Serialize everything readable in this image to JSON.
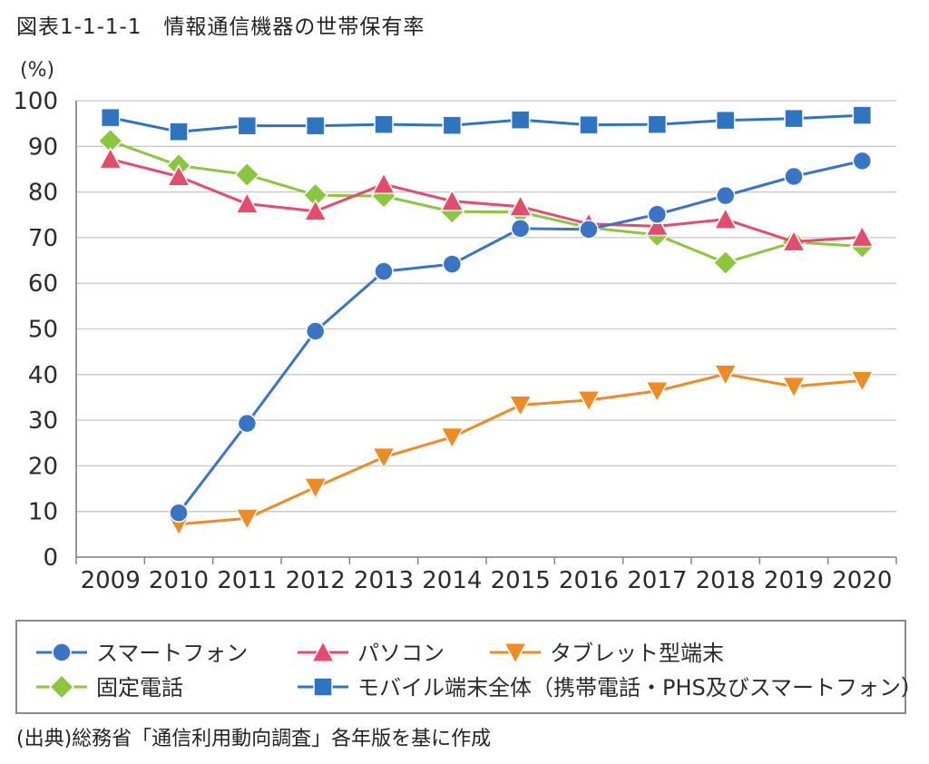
{
  "page": {
    "title": "図表1-1-1-1　情報通信機器の世帯保有率",
    "source": "(出典)総務省「通信利用動向調査」各年版を基に作成"
  },
  "chart_data": {
    "type": "line",
    "title": "図表1-1-1-1　情報通信機器の世帯保有率",
    "ylabel": "(%)",
    "xlabel": "",
    "ylim": [
      0,
      100
    ],
    "yticks": [
      0,
      10,
      20,
      30,
      40,
      50,
      60,
      70,
      80,
      90,
      100
    ],
    "x": [
      "2009",
      "2010",
      "2011",
      "2012",
      "2013",
      "2014",
      "2015",
      "2016",
      "2017",
      "2018",
      "2019",
      "2020"
    ],
    "grid": "horizontal",
    "legend_position": "bottom",
    "series": [
      {
        "key": "smartphone",
        "name": "スマートフォン",
        "color": "#3a74c4",
        "marker": "circle",
        "values": [
          null,
          9.7,
          29.3,
          49.5,
          62.6,
          64.2,
          72.0,
          71.8,
          75.1,
          79.2,
          83.4,
          86.8
        ]
      },
      {
        "key": "pc",
        "name": "パソコン",
        "color": "#e44b6d",
        "marker": "triangle-up",
        "values": [
          87.2,
          83.4,
          77.4,
          75.8,
          81.7,
          78.0,
          76.8,
          73.0,
          72.5,
          74.0,
          69.1,
          70.1
        ]
      },
      {
        "key": "tablet",
        "name": "タブレット型端末",
        "color": "#f08a24",
        "marker": "triangle-down",
        "values": [
          null,
          7.2,
          8.5,
          15.3,
          21.9,
          26.3,
          33.3,
          34.4,
          36.4,
          40.1,
          37.4,
          38.7
        ]
      },
      {
        "key": "landline",
        "name": "固定電話",
        "color": "#8cc63f",
        "marker": "diamond",
        "values": [
          91.2,
          85.8,
          83.8,
          79.3,
          79.1,
          75.7,
          75.6,
          72.2,
          70.6,
          64.5,
          69.0,
          68.1
        ]
      },
      {
        "key": "mobile_all",
        "name": "モバイル端末全体（携帯電話・PHS及びスマートフォン）",
        "color": "#2f74c0",
        "marker": "square",
        "values": [
          96.3,
          93.2,
          94.5,
          94.5,
          94.8,
          94.6,
          95.8,
          94.7,
          94.8,
          95.7,
          96.1,
          96.8
        ]
      }
    ]
  }
}
